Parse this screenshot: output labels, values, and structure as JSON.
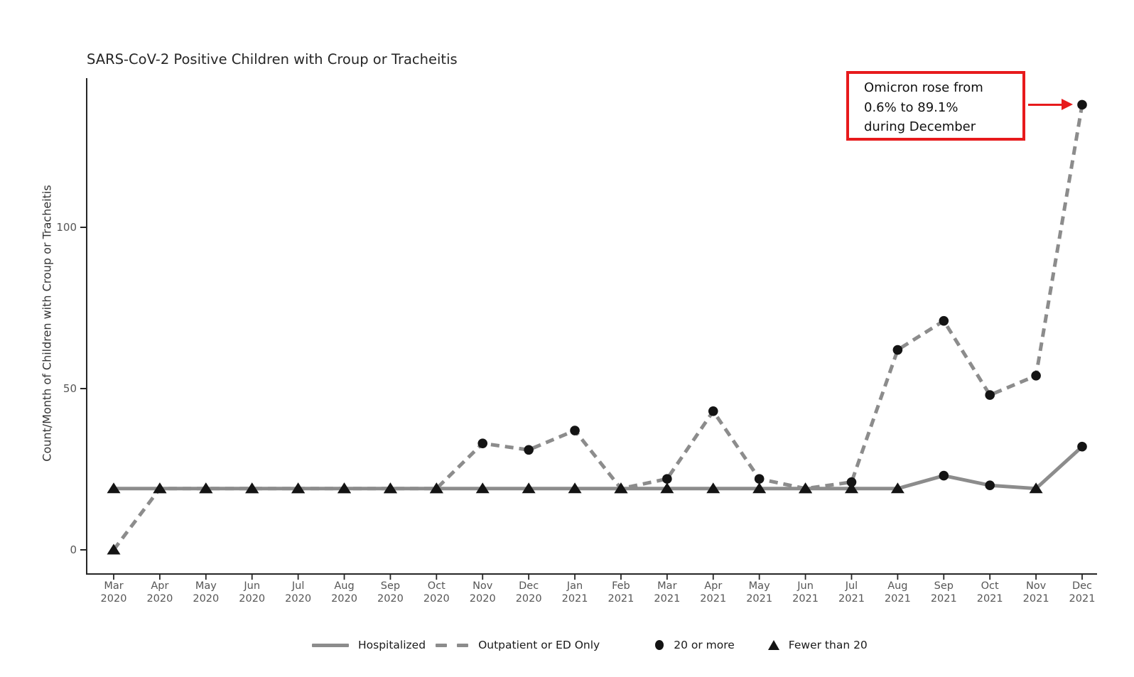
{
  "colors": {
    "line_gray": "#8c8c8c",
    "marker_black": "#141414",
    "annotation_red": "#e71a1c",
    "axis_line": "#262626",
    "tick_label": "#565656",
    "title_text": "#262626"
  },
  "annotation": {
    "lines": [
      "Omicron rose from",
      "0.6% to 89.1%",
      "during December"
    ]
  },
  "legend": {
    "items": [
      {
        "swatch": "solid-line",
        "label": "Hospitalized"
      },
      {
        "swatch": "dashed-line",
        "label": "Outpatient or ED Only"
      },
      {
        "swatch": "circle",
        "label": "20 or more"
      },
      {
        "swatch": "triangle",
        "label": "Fewer than 20"
      }
    ]
  },
  "chart_data": {
    "type": "line",
    "title": "SARS-CoV-2 Positive Children with Croup or Tracheitis",
    "ylabel": "Count/Month of Children with Croup or Tracheitis",
    "xlabel": "",
    "yticks": [
      0,
      50,
      100
    ],
    "ylim": [
      -7,
      146
    ],
    "grid": false,
    "legend_position": "bottom",
    "categories": [
      "Mar 2020",
      "Apr 2020",
      "May 2020",
      "Jun 2020",
      "Jul 2020",
      "Aug 2020",
      "Sep 2020",
      "Oct 2020",
      "Nov 2020",
      "Dec 2020",
      "Jan 2021",
      "Feb 2021",
      "Mar 2021",
      "Apr 2021",
      "May 2021",
      "Jun 2021",
      "Jul 2021",
      "Aug 2021",
      "Sep 2021",
      "Oct 2021",
      "Nov 2021",
      "Dec 2021"
    ],
    "series": [
      {
        "name": "Hospitalized",
        "line_style": "solid",
        "values": [
          19,
          19,
          19,
          19,
          19,
          19,
          19,
          19,
          19,
          19,
          19,
          19,
          19,
          19,
          19,
          19,
          19,
          19,
          23,
          20,
          19,
          32
        ],
        "markers": [
          "triangle",
          "triangle",
          "triangle",
          "triangle",
          "triangle",
          "triangle",
          "triangle",
          "triangle",
          "triangle",
          "triangle",
          "triangle",
          "triangle",
          "triangle",
          "triangle",
          "triangle",
          "triangle",
          "triangle",
          "triangle",
          "circle",
          "circle",
          "triangle",
          "circle"
        ]
      },
      {
        "name": "Outpatient or ED Only",
        "line_style": "dashed",
        "values": [
          0,
          19,
          19,
          19,
          19,
          19,
          19,
          19,
          33,
          31,
          37,
          19,
          22,
          43,
          22,
          19,
          21,
          62,
          71,
          48,
          54,
          138
        ],
        "markers": [
          "triangle",
          "triangle",
          "triangle",
          "triangle",
          "triangle",
          "triangle",
          "triangle",
          "triangle",
          "circle",
          "circle",
          "circle",
          "triangle",
          "circle",
          "circle",
          "circle",
          "triangle",
          "circle",
          "circle",
          "circle",
          "circle",
          "circle",
          "circle"
        ]
      }
    ],
    "marker_meaning": {
      "circle": "20 or more",
      "triangle": "Fewer than 20"
    },
    "annotation": {
      "text": "Omicron rose from 0.6% to 89.1% during December",
      "points_to": {
        "series": "Outpatient or ED Only",
        "category": "Dec 2021",
        "value": 138
      }
    }
  }
}
